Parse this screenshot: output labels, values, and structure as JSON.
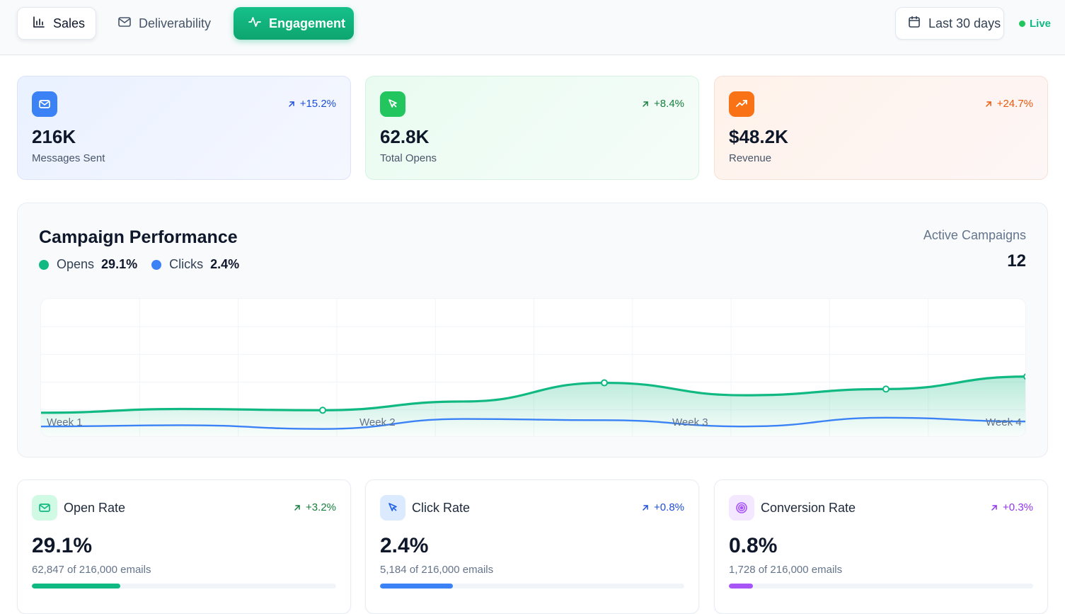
{
  "tabs": [
    {
      "label": "Sales",
      "icon": "bar-chart-icon",
      "active": false
    },
    {
      "label": "Deliverability",
      "icon": "mail-icon",
      "active": false
    },
    {
      "label": "Engagement",
      "icon": "activity-icon",
      "active": true
    }
  ],
  "date_range": {
    "label": "Last 30 days",
    "icon": "calendar-icon"
  },
  "live": {
    "label": "Live",
    "color": "#22c55e"
  },
  "stats": [
    {
      "label": "Messages Sent",
      "value": "216K",
      "change": "+15.2%",
      "icon": "mail-icon",
      "accent": "#3b82f6",
      "change_color": "#1d4ed8"
    },
    {
      "label": "Total Opens",
      "value": "62.8K",
      "change": "+8.4%",
      "icon": "cursor-click-icon",
      "accent": "#22c55e",
      "change_color": "#15803d"
    },
    {
      "label": "Revenue",
      "value": "$48.2K",
      "change": "+24.7%",
      "icon": "trending-up-icon",
      "accent": "#f97316",
      "change_color": "#ea580c"
    }
  ],
  "performance": {
    "title": "Campaign Performance",
    "legend": [
      {
        "name": "Opens",
        "value": "29.1%",
        "color": "#10b981"
      },
      {
        "name": "Clicks",
        "value": "2.4%",
        "color": "#3b82f6"
      }
    ],
    "active_label": "Active Campaigns",
    "active_value": "12"
  },
  "chart_data": {
    "type": "area",
    "x_labels": [
      "Week 1",
      "Week 2",
      "Week 3",
      "Week 4"
    ],
    "ylim": [
      0,
      100
    ],
    "series": [
      {
        "name": "Opens",
        "color": "#10b981",
        "values": [
          20,
          23,
          22,
          29,
          44,
          34,
          39,
          49
        ]
      },
      {
        "name": "Clicks",
        "color": "#3b82f6",
        "values": [
          9,
          10,
          7,
          15,
          14,
          9,
          16,
          13
        ]
      }
    ],
    "markers": [
      2,
      4,
      6,
      8
    ]
  },
  "metrics": [
    {
      "title": "Open Rate",
      "value": "29.1%",
      "sub": "62,847 of 216,000 emails",
      "change": "+3.2%",
      "icon": "mail-icon",
      "color": "#10b981",
      "icon_bg": "#d1fae5",
      "change_color": "#15803d",
      "progress": 0.291
    },
    {
      "title": "Click Rate",
      "value": "2.4%",
      "sub": "5,184 of 216,000 emails",
      "change": "+0.8%",
      "icon": "cursor-click-icon",
      "color": "#3b82f6",
      "icon_bg": "#dbeafe",
      "change_color": "#1d4ed8",
      "progress": 0.24
    },
    {
      "title": "Conversion Rate",
      "value": "0.8%",
      "sub": "1,728 of 216,000 emails",
      "change": "+0.3%",
      "icon": "target-icon",
      "color": "#a855f7",
      "icon_bg": "#f3e8ff",
      "change_color": "#9333ea",
      "progress": 0.08
    }
  ]
}
